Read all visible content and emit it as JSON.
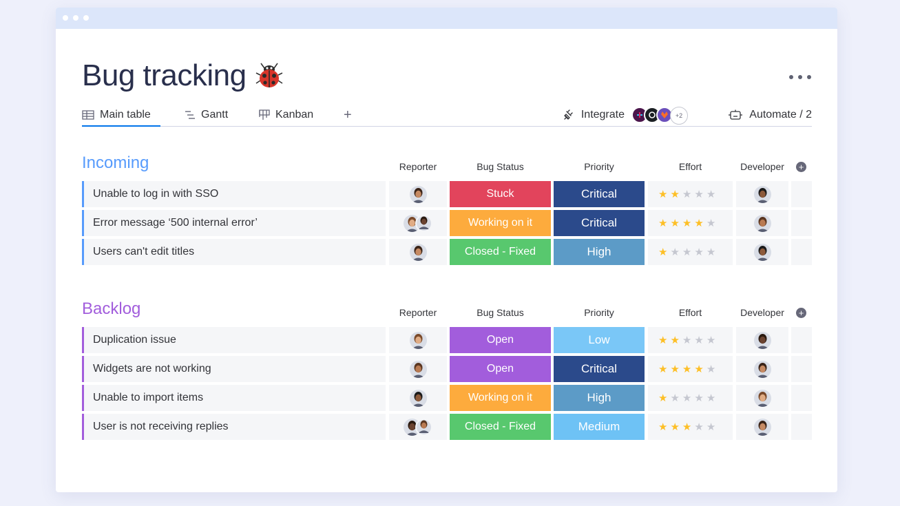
{
  "board": {
    "title": "Bug tracking",
    "title_icon": "ladybug-icon"
  },
  "tabs": [
    {
      "label": "Main table",
      "icon": "table-icon",
      "active": true
    },
    {
      "label": "Gantt",
      "icon": "gantt-icon",
      "active": false
    },
    {
      "label": "Kanban",
      "icon": "kanban-icon",
      "active": false
    }
  ],
  "toolbar": {
    "integrate_label": "Integrate",
    "apps_more": "+2",
    "automate_label": "Automate / 2"
  },
  "columns": [
    "Reporter",
    "Bug Status",
    "Priority",
    "Effort",
    "Developer"
  ],
  "groups": [
    {
      "title": "Incoming",
      "color": "#579bfc",
      "items": [
        {
          "name": "Unable to log in with SSO",
          "reporters": 1,
          "status": "Stuck",
          "status_color": "#e2445c",
          "priority": "Critical",
          "priority_color": "#2b4a8b",
          "effort": 2,
          "max_effort": 5
        },
        {
          "name": "Error message ‘500 internal error’",
          "reporters": 2,
          "status": "Working on it",
          "status_color": "#fdab3d",
          "priority": "Critical",
          "priority_color": "#2b4a8b",
          "effort": 4,
          "max_effort": 5
        },
        {
          "name": "Users can't edit titles",
          "reporters": 1,
          "status": "Closed - Fixed",
          "status_color": "#58c86e",
          "priority": "High",
          "priority_color": "#5c9bc7",
          "effort": 1,
          "max_effort": 5
        }
      ]
    },
    {
      "title": "Backlog",
      "color": "#a25ddc",
      "items": [
        {
          "name": "Duplication issue",
          "reporters": 1,
          "status": "Open",
          "status_color": "#a25ddc",
          "priority": "Low",
          "priority_color": "#7ac7f7",
          "effort": 2,
          "max_effort": 5
        },
        {
          "name": "Widgets are not working",
          "reporters": 1,
          "status": "Open",
          "status_color": "#a25ddc",
          "priority": "Critical",
          "priority_color": "#2b4a8b",
          "effort": 4,
          "max_effort": 5
        },
        {
          "name": "Unable to import items",
          "reporters": 1,
          "status": "Working on it",
          "status_color": "#fdab3d",
          "priority": "High",
          "priority_color": "#5c9bc7",
          "effort": 1,
          "max_effort": 5
        },
        {
          "name": "User is not receiving replies",
          "reporters": 2,
          "status": "Closed - Fixed",
          "status_color": "#58c86e",
          "priority": "Medium",
          "priority_color": "#6ec2f5",
          "effort": 3,
          "max_effort": 5
        }
      ]
    }
  ]
}
